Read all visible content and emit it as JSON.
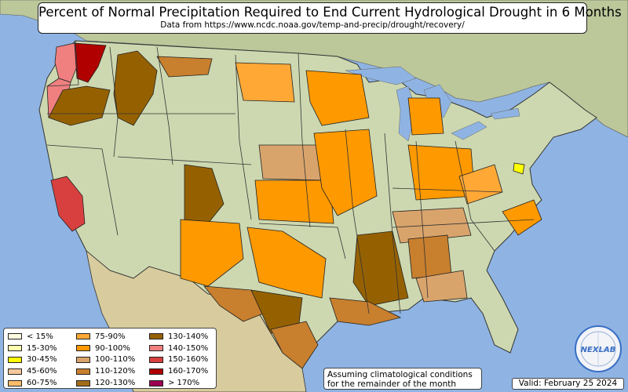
{
  "title": "Percent of Normal Precipitation Required to End Current Hydrological Drought in 6 Months",
  "subtitle": "Data from https://www.ncdc.noaa.gov/temp-and-precip/drought/recovery/",
  "legend": {
    "items": [
      {
        "label": "< 15%",
        "color": "#fffde0"
      },
      {
        "label": "15-30%",
        "color": "#ffffb0"
      },
      {
        "label": "30-45%",
        "color": "#ffff00"
      },
      {
        "label": "45-60%",
        "color": "#f6c79a"
      },
      {
        "label": "60-75%",
        "color": "#fbbd6b"
      },
      {
        "label": "75-90%",
        "color": "#ffa836"
      },
      {
        "label": "90-100%",
        "color": "#ff9900"
      },
      {
        "label": "100-110%",
        "color": "#d9a46c"
      },
      {
        "label": "110-120%",
        "color": "#c87f2e"
      },
      {
        "label": "120-130%",
        "color": "#a26d18"
      },
      {
        "label": "130-140%",
        "color": "#956100"
      },
      {
        "label": "140-150%",
        "color": "#f08080"
      },
      {
        "label": "150-160%",
        "color": "#d84040"
      },
      {
        "label": "160-170%",
        "color": "#b00000"
      },
      {
        "label": "> 170%",
        "color": "#9c0050"
      }
    ]
  },
  "note": {
    "line1": "Assuming climatological conditions",
    "line2": "for the remainder of the month"
  },
  "valid_date": "Valid: February 25 2024",
  "logo": {
    "text": "NEXLAB",
    "color": "#3a6fc4"
  },
  "colors": {
    "ocean": "#8fb4e3",
    "land": "#cdd8b0",
    "land_dry": "#dcd2a8",
    "land_green": "#a9c28a",
    "canada": "#bcc79a",
    "mexico": "#d8cc9e",
    "border": "#333333"
  }
}
